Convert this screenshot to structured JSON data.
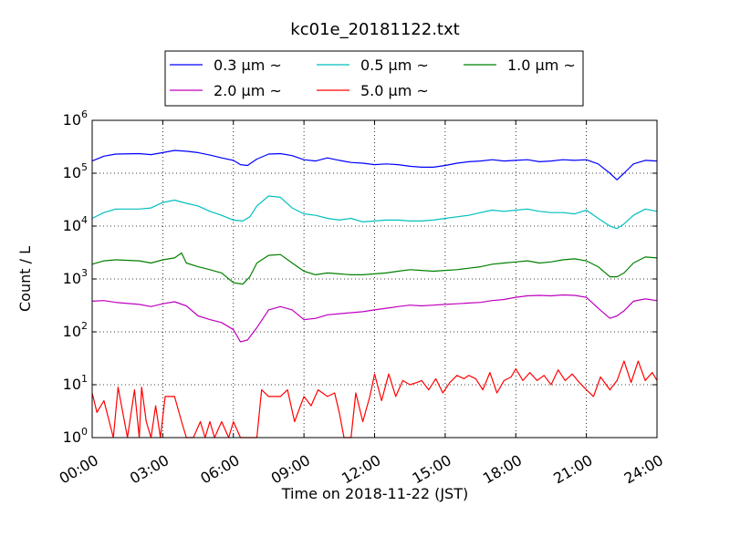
{
  "chart_data": {
    "type": "line",
    "title": "kc01e_20181122.txt",
    "xlabel": "Time on 2018-11-22 (JST)",
    "ylabel": "Count / L",
    "xlim": [
      0,
      24
    ],
    "x_tick_values": [
      0,
      3,
      6,
      9,
      12,
      15,
      18,
      21,
      24
    ],
    "x_tick_labels": [
      "00:00",
      "03:00",
      "06:00",
      "09:00",
      "12:00",
      "15:00",
      "18:00",
      "21:00",
      "24:00"
    ],
    "yscale": "log",
    "ylim": [
      1,
      1000000
    ],
    "y_tick_values": [
      1,
      10,
      100,
      1000,
      10000,
      100000,
      1000000
    ],
    "y_tick_labels": [
      {
        "base": "10",
        "exp": "0"
      },
      {
        "base": "10",
        "exp": "1"
      },
      {
        "base": "10",
        "exp": "2"
      },
      {
        "base": "10",
        "exp": "3"
      },
      {
        "base": "10",
        "exp": "4"
      },
      {
        "base": "10",
        "exp": "5"
      },
      {
        "base": "10",
        "exp": "6"
      }
    ],
    "grid": true,
    "legend_position": "top-center",
    "series": [
      {
        "name": "0.3 µm ~",
        "color": "#0000ff",
        "points": [
          [
            0,
            170000
          ],
          [
            0.5,
            210000
          ],
          [
            1,
            230000
          ],
          [
            2,
            235000
          ],
          [
            2.5,
            225000
          ],
          [
            3,
            245000
          ],
          [
            3.5,
            270000
          ],
          [
            4,
            260000
          ],
          [
            4.5,
            245000
          ],
          [
            5,
            220000
          ],
          [
            5.5,
            195000
          ],
          [
            6,
            175000
          ],
          [
            6.3,
            145000
          ],
          [
            6.6,
            140000
          ],
          [
            7,
            185000
          ],
          [
            7.5,
            230000
          ],
          [
            8,
            235000
          ],
          [
            8.5,
            215000
          ],
          [
            9,
            180000
          ],
          [
            9.5,
            170000
          ],
          [
            10,
            195000
          ],
          [
            10.5,
            175000
          ],
          [
            11,
            160000
          ],
          [
            11.5,
            155000
          ],
          [
            12,
            145000
          ],
          [
            12.5,
            150000
          ],
          [
            13,
            145000
          ],
          [
            13.5,
            135000
          ],
          [
            14,
            130000
          ],
          [
            14.5,
            130000
          ],
          [
            15,
            140000
          ],
          [
            15.5,
            155000
          ],
          [
            16,
            165000
          ],
          [
            16.5,
            170000
          ],
          [
            17,
            180000
          ],
          [
            17.5,
            170000
          ],
          [
            18,
            175000
          ],
          [
            18.5,
            180000
          ],
          [
            19,
            165000
          ],
          [
            19.5,
            170000
          ],
          [
            20,
            180000
          ],
          [
            20.5,
            175000
          ],
          [
            21,
            180000
          ],
          [
            21.5,
            150000
          ],
          [
            22,
            100000
          ],
          [
            22.3,
            75000
          ],
          [
            22.6,
            100000
          ],
          [
            23,
            150000
          ],
          [
            23.5,
            175000
          ],
          [
            24,
            170000
          ]
        ]
      },
      {
        "name": "0.5 µm ~",
        "color": "#00bfbf",
        "points": [
          [
            0,
            14000
          ],
          [
            0.5,
            18000
          ],
          [
            1,
            21000
          ],
          [
            2,
            21000
          ],
          [
            2.5,
            22000
          ],
          [
            3,
            28000
          ],
          [
            3.5,
            31000
          ],
          [
            4,
            27000
          ],
          [
            4.5,
            24000
          ],
          [
            5,
            19000
          ],
          [
            5.5,
            16000
          ],
          [
            6,
            13000
          ],
          [
            6.4,
            12500
          ],
          [
            6.7,
            15000
          ],
          [
            7,
            24000
          ],
          [
            7.5,
            37000
          ],
          [
            8,
            35000
          ],
          [
            8.5,
            22000
          ],
          [
            9,
            17000
          ],
          [
            9.5,
            16000
          ],
          [
            10,
            14000
          ],
          [
            10.5,
            13000
          ],
          [
            11,
            14000
          ],
          [
            11.5,
            12000
          ],
          [
            12,
            12500
          ],
          [
            12.5,
            13000
          ],
          [
            13,
            13000
          ],
          [
            13.5,
            12500
          ],
          [
            14,
            12500
          ],
          [
            14.5,
            13000
          ],
          [
            15,
            14000
          ],
          [
            15.5,
            15000
          ],
          [
            16,
            16000
          ],
          [
            16.5,
            18000
          ],
          [
            17,
            20000
          ],
          [
            17.5,
            19000
          ],
          [
            18,
            20000
          ],
          [
            18.5,
            21000
          ],
          [
            19,
            19000
          ],
          [
            19.5,
            18000
          ],
          [
            20,
            18000
          ],
          [
            20.5,
            17000
          ],
          [
            21,
            20000
          ],
          [
            21.5,
            14000
          ],
          [
            22,
            10000
          ],
          [
            22.3,
            9000
          ],
          [
            22.6,
            11000
          ],
          [
            23,
            16000
          ],
          [
            23.5,
            21000
          ],
          [
            24,
            19000
          ]
        ]
      },
      {
        "name": "1.0 µm ~",
        "color": "#008000",
        "points": [
          [
            0,
            1900
          ],
          [
            0.5,
            2200
          ],
          [
            1,
            2300
          ],
          [
            2,
            2200
          ],
          [
            2.5,
            2000
          ],
          [
            3,
            2300
          ],
          [
            3.5,
            2500
          ],
          [
            3.8,
            3100
          ],
          [
            4,
            2000
          ],
          [
            4.5,
            1700
          ],
          [
            5,
            1500
          ],
          [
            5.5,
            1300
          ],
          [
            6,
            850
          ],
          [
            6.4,
            800
          ],
          [
            6.7,
            1100
          ],
          [
            7,
            2000
          ],
          [
            7.5,
            2800
          ],
          [
            8,
            2900
          ],
          [
            8.5,
            2000
          ],
          [
            9,
            1400
          ],
          [
            9.5,
            1200
          ],
          [
            10,
            1300
          ],
          [
            10.5,
            1250
          ],
          [
            11,
            1200
          ],
          [
            11.5,
            1200
          ],
          [
            12,
            1250
          ],
          [
            12.5,
            1300
          ],
          [
            13,
            1400
          ],
          [
            13.5,
            1500
          ],
          [
            14,
            1450
          ],
          [
            14.5,
            1400
          ],
          [
            15,
            1450
          ],
          [
            15.5,
            1500
          ],
          [
            16,
            1600
          ],
          [
            16.5,
            1700
          ],
          [
            17,
            1900
          ],
          [
            17.5,
            2000
          ],
          [
            18,
            2100
          ],
          [
            18.5,
            2200
          ],
          [
            19,
            2000
          ],
          [
            19.5,
            2100
          ],
          [
            20,
            2300
          ],
          [
            20.5,
            2400
          ],
          [
            21,
            2200
          ],
          [
            21.5,
            1700
          ],
          [
            22,
            1100
          ],
          [
            22.3,
            1100
          ],
          [
            22.6,
            1300
          ],
          [
            23,
            2000
          ],
          [
            23.5,
            2600
          ],
          [
            24,
            2500
          ]
        ]
      },
      {
        "name": "2.0 µm ~",
        "color": "#bf00bf",
        "points": [
          [
            0,
            380
          ],
          [
            0.5,
            390
          ],
          [
            1,
            360
          ],
          [
            2,
            330
          ],
          [
            2.5,
            300
          ],
          [
            3,
            340
          ],
          [
            3.5,
            370
          ],
          [
            4,
            310
          ],
          [
            4.5,
            200
          ],
          [
            5,
            170
          ],
          [
            5.5,
            150
          ],
          [
            6,
            110
          ],
          [
            6.3,
            65
          ],
          [
            6.6,
            70
          ],
          [
            7,
            120
          ],
          [
            7.5,
            260
          ],
          [
            8,
            300
          ],
          [
            8.5,
            260
          ],
          [
            9,
            170
          ],
          [
            9.5,
            180
          ],
          [
            10,
            210
          ],
          [
            10.5,
            220
          ],
          [
            11,
            230
          ],
          [
            11.5,
            240
          ],
          [
            12,
            260
          ],
          [
            12.5,
            280
          ],
          [
            13,
            300
          ],
          [
            13.5,
            320
          ],
          [
            14,
            310
          ],
          [
            14.5,
            320
          ],
          [
            15,
            330
          ],
          [
            15.5,
            340
          ],
          [
            16,
            350
          ],
          [
            16.5,
            360
          ],
          [
            17,
            390
          ],
          [
            17.5,
            410
          ],
          [
            18,
            450
          ],
          [
            18.5,
            480
          ],
          [
            19,
            490
          ],
          [
            19.5,
            480
          ],
          [
            20,
            500
          ],
          [
            20.5,
            490
          ],
          [
            21,
            450
          ],
          [
            21.5,
            280
          ],
          [
            22,
            180
          ],
          [
            22.3,
            200
          ],
          [
            22.6,
            250
          ],
          [
            23,
            380
          ],
          [
            23.5,
            420
          ],
          [
            24,
            390
          ]
        ]
      },
      {
        "name": "5.0 µm ~",
        "color": "#ff0000",
        "points": [
          [
            0,
            7
          ],
          [
            0.2,
            3
          ],
          [
            0.5,
            5
          ],
          [
            0.9,
            1
          ],
          [
            1.1,
            9
          ],
          [
            1.3,
            3
          ],
          [
            1.5,
            1
          ],
          [
            1.8,
            8
          ],
          [
            2,
            1
          ],
          [
            2.1,
            9
          ],
          [
            2.3,
            2
          ],
          [
            2.5,
            1
          ],
          [
            2.7,
            4
          ],
          [
            2.9,
            1
          ],
          [
            3.1,
            6
          ],
          [
            3.5,
            6
          ],
          [
            3.8,
            2
          ],
          [
            4,
            1
          ],
          [
            4.3,
            1
          ],
          [
            4.6,
            2
          ],
          [
            4.8,
            1
          ],
          [
            5,
            2
          ],
          [
            5.2,
            1
          ],
          [
            5.5,
            2
          ],
          [
            5.8,
            1
          ],
          [
            6,
            2
          ],
          [
            6.3,
            1
          ],
          [
            6.6,
            1
          ],
          [
            7,
            1
          ],
          [
            7.2,
            8
          ],
          [
            7.5,
            6
          ],
          [
            8,
            6
          ],
          [
            8.3,
            8
          ],
          [
            8.6,
            2
          ],
          [
            9,
            6
          ],
          [
            9.3,
            4
          ],
          [
            9.6,
            8
          ],
          [
            10,
            6
          ],
          [
            10.3,
            7
          ],
          [
            10.5,
            3
          ],
          [
            10.7,
            1
          ],
          [
            11,
            1
          ],
          [
            11.2,
            7
          ],
          [
            11.5,
            2
          ],
          [
            11.8,
            6
          ],
          [
            12,
            16
          ],
          [
            12.3,
            5
          ],
          [
            12.6,
            16
          ],
          [
            12.9,
            6
          ],
          [
            13.2,
            12
          ],
          [
            13.5,
            10
          ],
          [
            13.8,
            11
          ],
          [
            14,
            12
          ],
          [
            14.3,
            8
          ],
          [
            14.6,
            13
          ],
          [
            14.9,
            7
          ],
          [
            15.2,
            11
          ],
          [
            15.5,
            15
          ],
          [
            15.8,
            13
          ],
          [
            16,
            15
          ],
          [
            16.3,
            13
          ],
          [
            16.6,
            8
          ],
          [
            16.9,
            17
          ],
          [
            17.2,
            7
          ],
          [
            17.5,
            12
          ],
          [
            17.8,
            14
          ],
          [
            18,
            20
          ],
          [
            18.3,
            12
          ],
          [
            18.6,
            17
          ],
          [
            18.9,
            12
          ],
          [
            19.2,
            15
          ],
          [
            19.5,
            10
          ],
          [
            19.8,
            19
          ],
          [
            20.1,
            12
          ],
          [
            20.4,
            16
          ],
          [
            20.7,
            11
          ],
          [
            21,
            8
          ],
          [
            21.3,
            6
          ],
          [
            21.6,
            14
          ],
          [
            22,
            8
          ],
          [
            22.3,
            12
          ],
          [
            22.6,
            28
          ],
          [
            22.9,
            11
          ],
          [
            23.2,
            28
          ],
          [
            23.5,
            12
          ],
          [
            23.8,
            17
          ],
          [
            24,
            12
          ]
        ]
      }
    ]
  }
}
